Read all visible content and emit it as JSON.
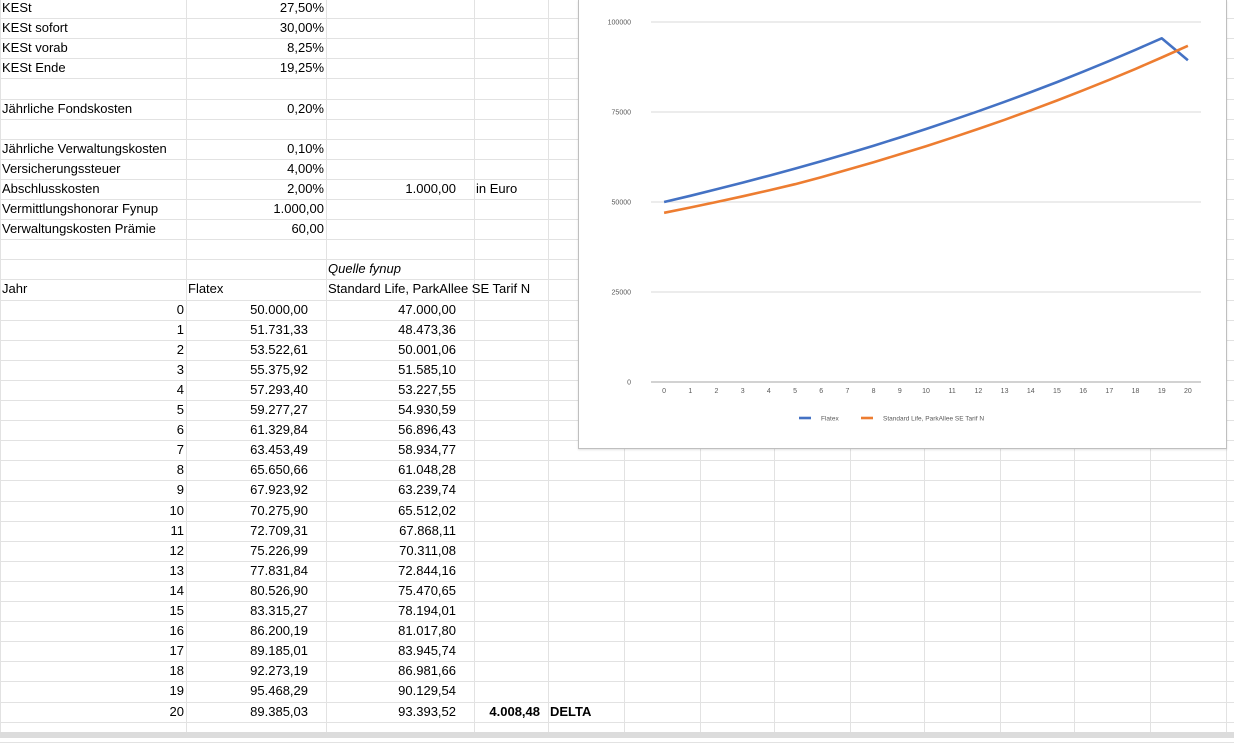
{
  "params": [
    {
      "label": "KESt",
      "value": "27,50%"
    },
    {
      "label": "KESt sofort",
      "value": "30,00%"
    },
    {
      "label": "KESt vorab",
      "value": "8,25%"
    },
    {
      "label": "KESt Ende",
      "value": "19,25%"
    },
    {
      "label": "",
      "value": ""
    },
    {
      "label": "Jährliche Fondskosten",
      "value": "0,20%"
    },
    {
      "label": "",
      "value": ""
    },
    {
      "label": "Jährliche Verwaltungskosten",
      "value": "0,10%"
    },
    {
      "label": "Versicherungssteuer",
      "value": "4,00%"
    },
    {
      "label": "Abschlusskosten",
      "value": "2,00%",
      "extra_value": "1.000,00",
      "extra_unit": "in Euro"
    },
    {
      "label": "Vermittlungshonorar Fynup",
      "value": "1.000,00"
    },
    {
      "label": "Verwaltungskosten Prämie",
      "value": "60,00"
    }
  ],
  "source_note": "Quelle fynup",
  "table": {
    "headers": [
      "Jahr",
      "Flatex",
      "Standard Life, ParkAllee SE Tarif N"
    ],
    "rows": [
      [
        "0",
        "50.000,00",
        "47.000,00"
      ],
      [
        "1",
        "51.731,33",
        "48.473,36"
      ],
      [
        "2",
        "53.522,61",
        "50.001,06"
      ],
      [
        "3",
        "55.375,92",
        "51.585,10"
      ],
      [
        "4",
        "57.293,40",
        "53.227,55"
      ],
      [
        "5",
        "59.277,27",
        "54.930,59"
      ],
      [
        "6",
        "61.329,84",
        "56.896,43"
      ],
      [
        "7",
        "63.453,49",
        "58.934,77"
      ],
      [
        "8",
        "65.650,66",
        "61.048,28"
      ],
      [
        "9",
        "67.923,92",
        "63.239,74"
      ],
      [
        "10",
        "70.275,90",
        "65.512,02"
      ],
      [
        "11",
        "72.709,31",
        "67.868,11"
      ],
      [
        "12",
        "75.226,99",
        "70.311,08"
      ],
      [
        "13",
        "77.831,84",
        "72.844,16"
      ],
      [
        "14",
        "80.526,90",
        "75.470,65"
      ],
      [
        "15",
        "83.315,27",
        "78.194,01"
      ],
      [
        "16",
        "86.200,19",
        "81.017,80"
      ],
      [
        "17",
        "89.185,01",
        "83.945,74"
      ],
      [
        "18",
        "92.273,19",
        "86.981,66"
      ],
      [
        "19",
        "95.468,29",
        "90.129,54"
      ],
      [
        "20",
        "89.385,03",
        "93.393,52"
      ]
    ],
    "delta_value": "4.008,48",
    "delta_label": "DELTA"
  },
  "chart_data": {
    "type": "line",
    "x": [
      0,
      1,
      2,
      3,
      4,
      5,
      6,
      7,
      8,
      9,
      10,
      11,
      12,
      13,
      14,
      15,
      16,
      17,
      18,
      19,
      20
    ],
    "series": [
      {
        "name": "Flatex",
        "color": "#4472c4",
        "values": [
          50000.0,
          51731.33,
          53522.61,
          55375.92,
          57293.4,
          59277.27,
          61329.84,
          63453.49,
          65650.66,
          67923.92,
          70275.9,
          72709.31,
          75226.99,
          77831.84,
          80526.9,
          83315.27,
          86200.19,
          89185.01,
          92273.19,
          95468.29,
          89385.03
        ]
      },
      {
        "name": "Standard Life, ParkAllee SE Tarif N",
        "color": "#ed7d31",
        "values": [
          47000.0,
          48473.36,
          50001.06,
          51585.1,
          53227.55,
          54930.59,
          56896.43,
          58934.77,
          61048.28,
          63239.74,
          65512.02,
          67868.11,
          70311.08,
          72844.16,
          75470.65,
          78194.01,
          81017.8,
          83945.74,
          86981.66,
          90129.54,
          93393.52
        ]
      }
    ],
    "ylim": [
      0,
      100000
    ],
    "yticks": [
      "0",
      "25000",
      "50000",
      "75000",
      "100000"
    ],
    "xticks": [
      "0",
      "1",
      "2",
      "3",
      "4",
      "5",
      "6",
      "7",
      "8",
      "9",
      "10",
      "11",
      "12",
      "13",
      "14",
      "15",
      "16",
      "17",
      "18",
      "19",
      "20"
    ],
    "grid": true,
    "legend_position": "bottom"
  }
}
